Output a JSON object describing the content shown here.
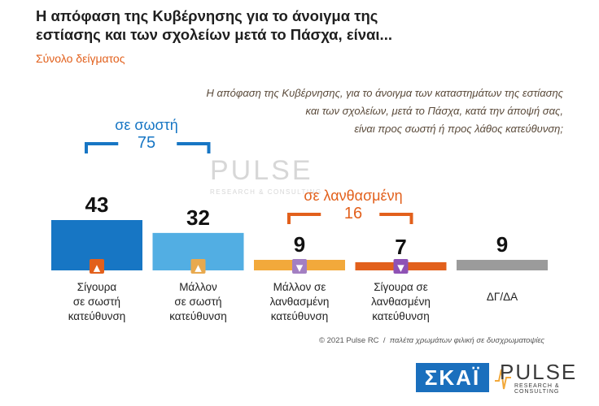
{
  "title_line1": "Η απόφαση της Κυβέρνησης για το άνοιγμα της",
  "title_line2": "εστίασης και των σχολείων μετά το Πάσχα, είναι...",
  "subtitle": "Σύνολο δείγματος",
  "question": [
    "Η απόφαση της Κυβέρνησης, για το άνοιγμα των καταστημάτων της εστίασης",
    "και των σχολείων, μετά το Πάσχα, κατά την άποψή σας,",
    "είναι προς σωστή ή προς λάθος κατεύθυνση;"
  ],
  "groups": {
    "correct": {
      "label": "σε σωστή",
      "total": "75",
      "color": "#1776c4"
    },
    "wrong": {
      "label": "σε λανθασμένη",
      "total": "16",
      "color": "#e2601c"
    }
  },
  "watermark": {
    "main": "PULSE",
    "sub": "RESEARCH & CONSULTING"
  },
  "chart_data": {
    "type": "bar",
    "categories": [
      [
        "Σίγουρα",
        "σε σωστή",
        "κατεύθυνση"
      ],
      [
        "Μάλλον",
        "σε σωστή",
        "κατεύθυνση"
      ],
      [
        "Μάλλον σε",
        "λανθασμένη",
        "κατεύθυνση"
      ],
      [
        "Σίγουρα σε",
        "λανθασμένη",
        "κατεύθυνση"
      ],
      [
        "ΔΓ/ΔΑ"
      ]
    ],
    "values": [
      43,
      32,
      9,
      7,
      9
    ],
    "colors": [
      "#1776c4",
      "#52aee3",
      "#f2a93b",
      "#e2601c",
      "#9b9b9b"
    ],
    "icon_colors": [
      "#e2601c",
      "#e8a94e",
      "#a37fc2",
      "#8f52b5",
      null
    ],
    "icons": [
      "double-thumbs-up-icon",
      "thumbs-up-icon",
      "thumbs-down-icon",
      "double-thumbs-down-icon",
      null
    ],
    "ylim": [
      0,
      43
    ]
  },
  "footer": {
    "copyright": "© 2021 Pulse RC",
    "separator": "/",
    "note": "παλέτα χρωμάτων φιλική σε δυσχρωματοψίες"
  },
  "logos": {
    "skai": "ΣΚΑΪ",
    "pulse": "PULSE",
    "pulse_sub": "RESEARCH & CONSULTING"
  }
}
